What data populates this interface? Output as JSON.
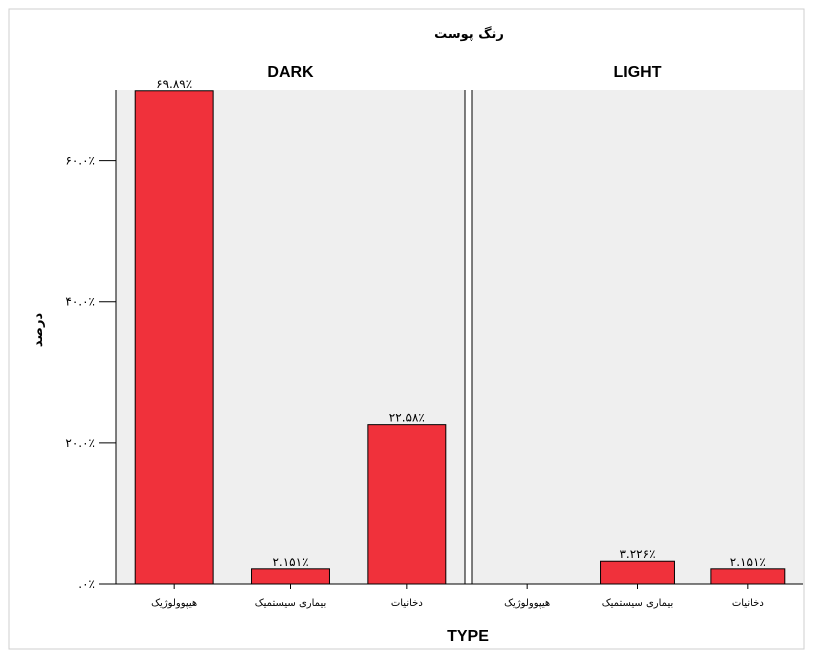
{
  "chart_data": {
    "type": "bar",
    "title": "رنگ پوست",
    "xlabel": "TYPE",
    "ylabel": "درصد",
    "ylim": [
      0,
      70
    ],
    "y_ticks": [
      0,
      20,
      40,
      60
    ],
    "y_tick_labels": [
      ".۰٪",
      "۲۰.۰٪",
      "۴۰.۰٪",
      "۶۰.۰٪"
    ],
    "categories": [
      "هیپوولوژیک",
      "بیماری سیستمیک",
      "دخانیات"
    ],
    "grid": false,
    "legend": "none",
    "bar_color": "#f0313b",
    "panel_background": "#efefef",
    "panels": [
      {
        "name": "DARK",
        "values": [
          69.89,
          2.151,
          22.58
        ],
        "value_labels": [
          "۶۹.۸۹٪",
          "۲.۱۵۱٪",
          "۲۲.۵۸٪"
        ]
      },
      {
        "name": "LIGHT",
        "values": [
          0,
          3.226,
          2.151
        ],
        "value_labels": [
          "",
          "۳.۲۲۶٪",
          "۲.۱۵۱٪"
        ]
      }
    ]
  }
}
